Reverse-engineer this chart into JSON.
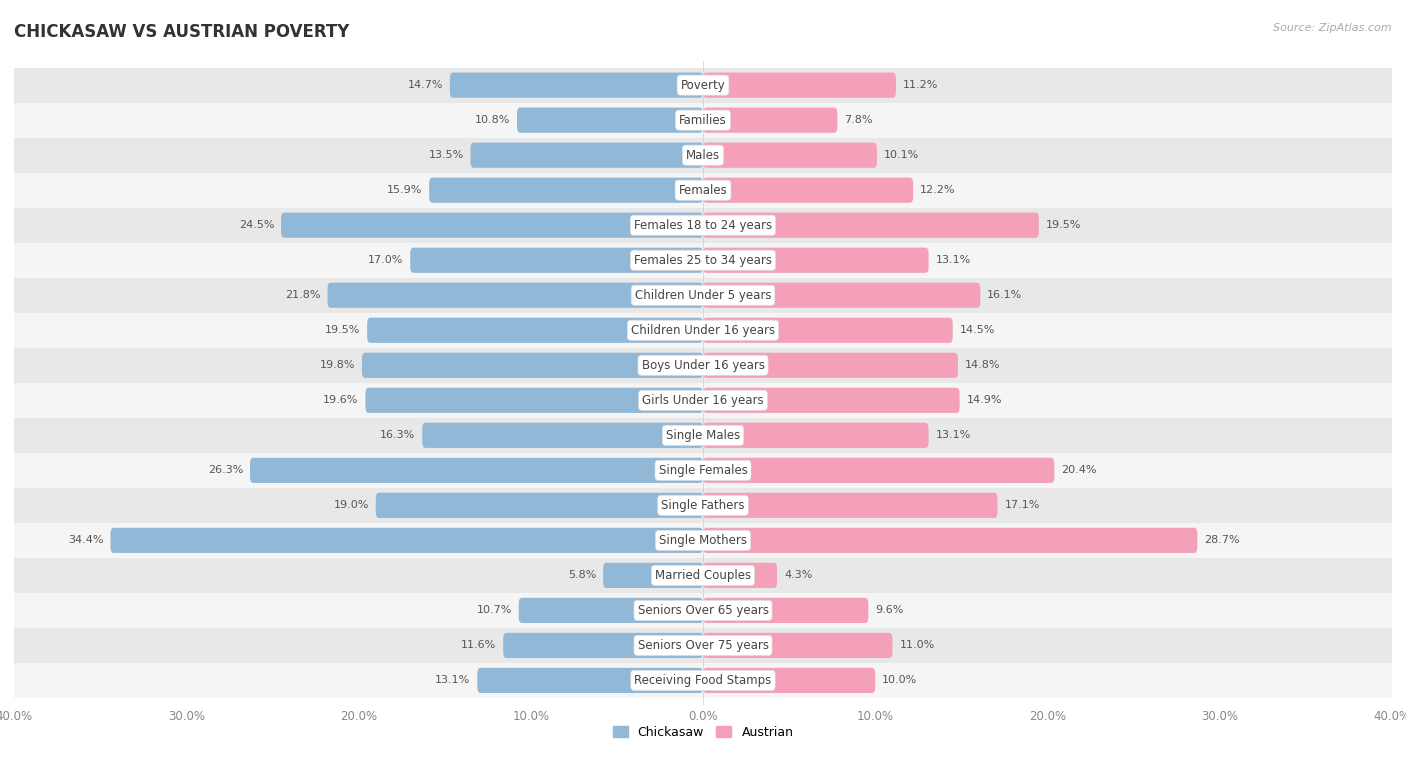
{
  "title": "CHICKASAW VS AUSTRIAN POVERTY",
  "source": "Source: ZipAtlas.com",
  "categories": [
    "Poverty",
    "Families",
    "Males",
    "Females",
    "Females 18 to 24 years",
    "Females 25 to 34 years",
    "Children Under 5 years",
    "Children Under 16 years",
    "Boys Under 16 years",
    "Girls Under 16 years",
    "Single Males",
    "Single Females",
    "Single Fathers",
    "Single Mothers",
    "Married Couples",
    "Seniors Over 65 years",
    "Seniors Over 75 years",
    "Receiving Food Stamps"
  ],
  "chickasaw": [
    14.7,
    10.8,
    13.5,
    15.9,
    24.5,
    17.0,
    21.8,
    19.5,
    19.8,
    19.6,
    16.3,
    26.3,
    19.0,
    34.4,
    5.8,
    10.7,
    11.6,
    13.1
  ],
  "austrian": [
    11.2,
    7.8,
    10.1,
    12.2,
    19.5,
    13.1,
    16.1,
    14.5,
    14.8,
    14.9,
    13.1,
    20.4,
    17.1,
    28.7,
    4.3,
    9.6,
    11.0,
    10.0
  ],
  "chickasaw_color": "#92b8d8",
  "austrian_color": "#f4a0b8",
  "background_row_light": "#e8e8e8",
  "background_row_dark": "#f5f5f5",
  "axis_max": 40.0,
  "bar_height": 0.72,
  "title_fontsize": 12,
  "label_fontsize": 8.5,
  "tick_fontsize": 8.5,
  "legend_fontsize": 9,
  "value_fontsize": 8.0
}
